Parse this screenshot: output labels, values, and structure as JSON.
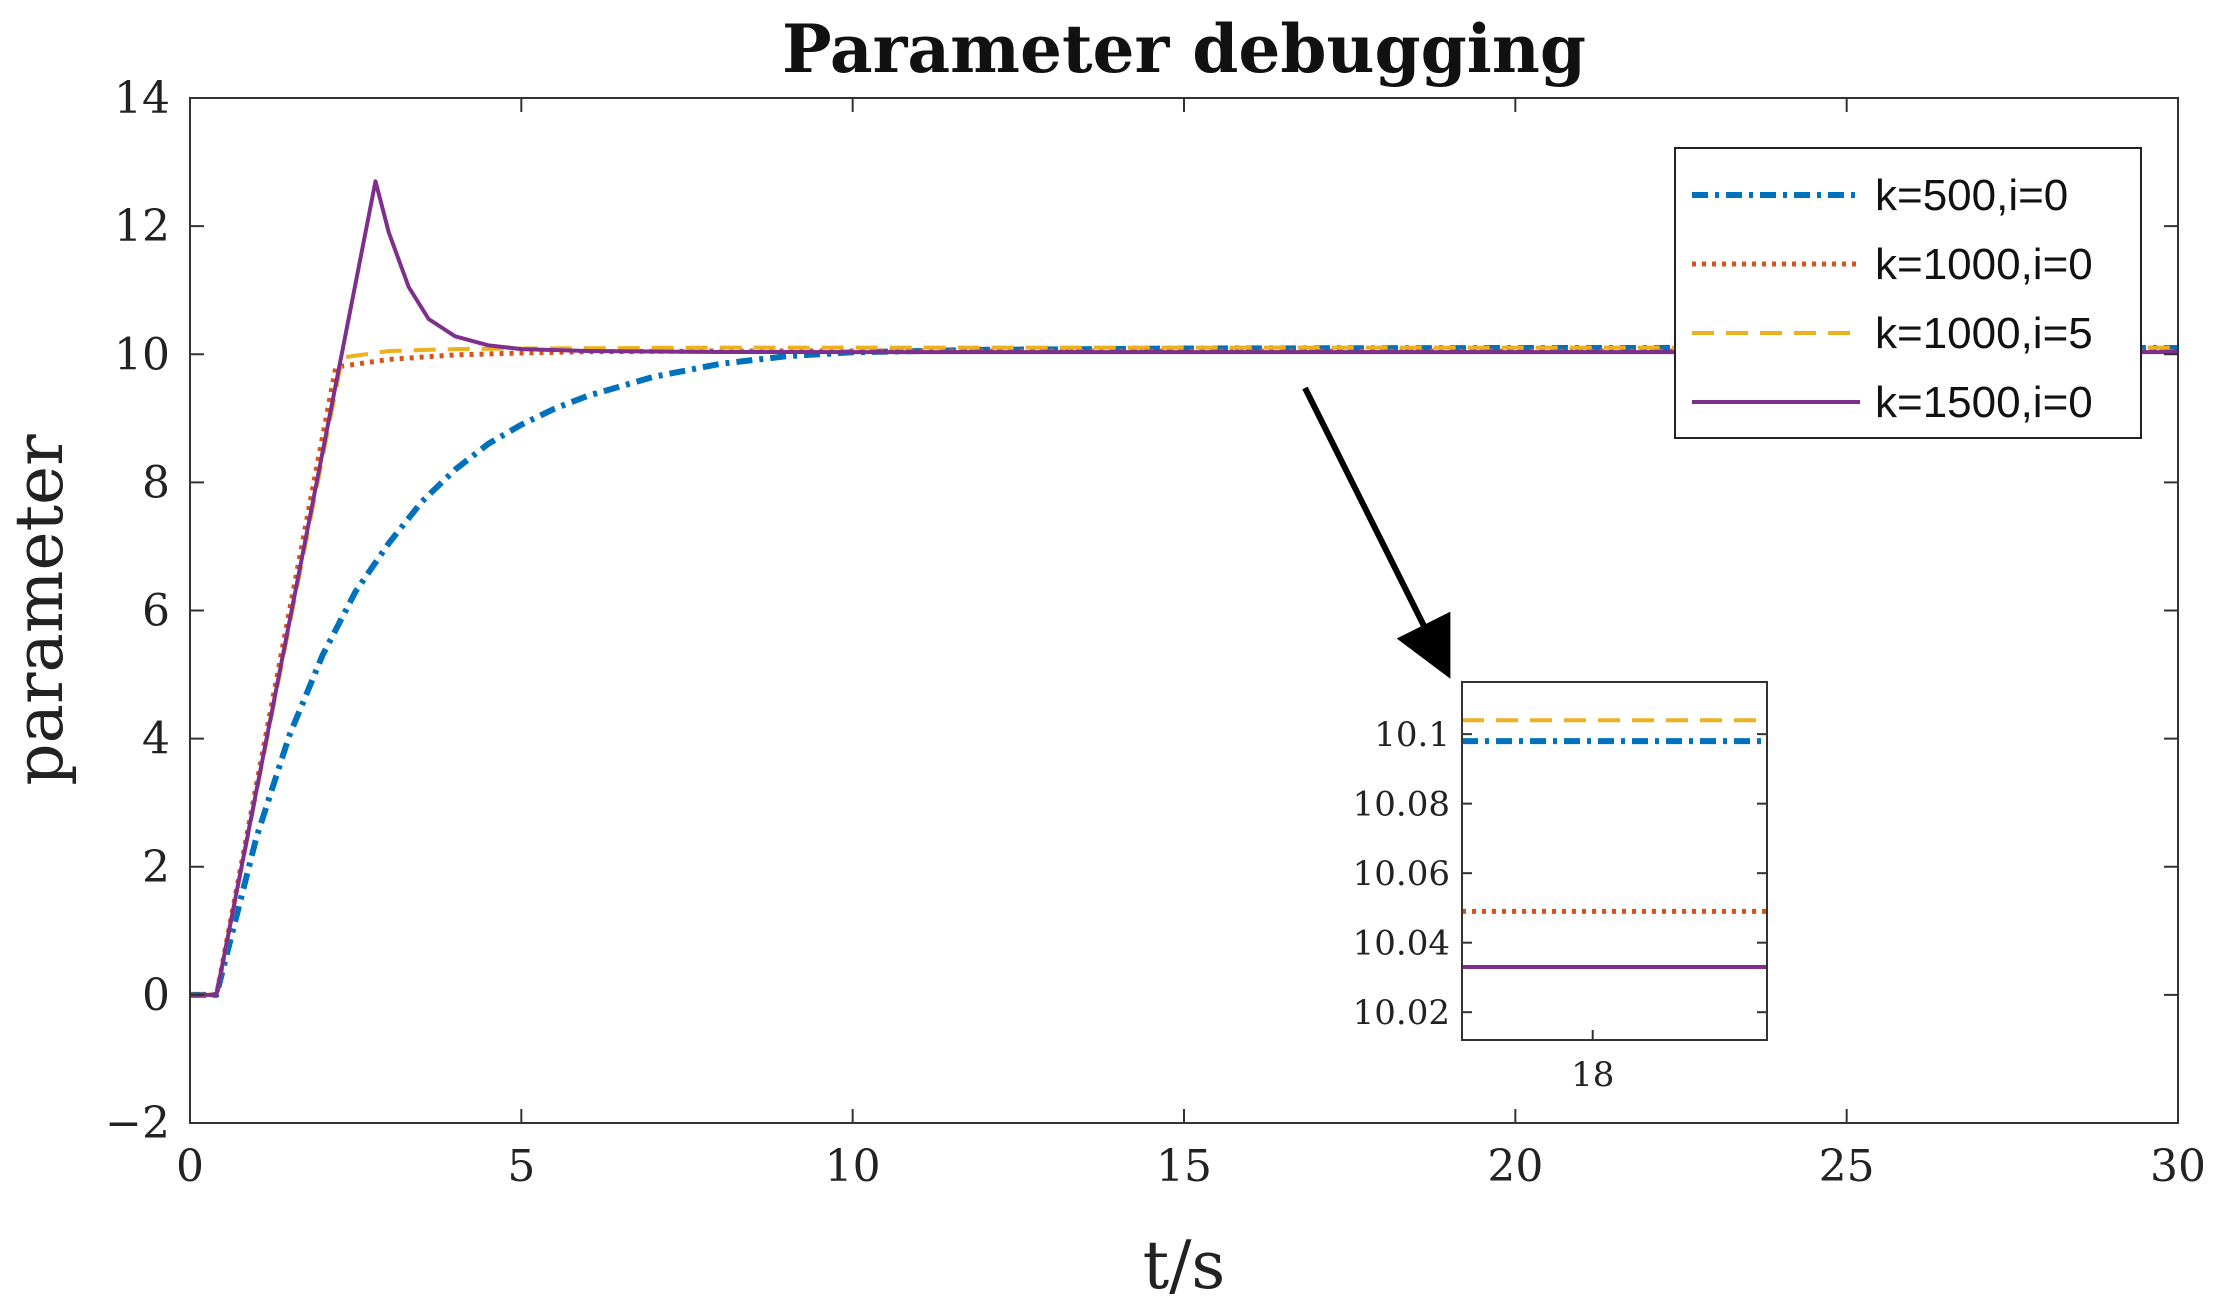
{
  "chart_data": [
    {
      "type": "line",
      "title": "Parameter debugging",
      "xlabel": "t/s",
      "ylabel": "parameter",
      "xlim": [
        0,
        30
      ],
      "ylim": [
        -2,
        14
      ],
      "xticks": [
        "0",
        "5",
        "10",
        "15",
        "20",
        "25",
        "30"
      ],
      "yticks": [
        "−2",
        "0",
        "2",
        "4",
        "6",
        "8",
        "10",
        "12",
        "14"
      ],
      "grid": false,
      "legend_position": "top-right",
      "series": [
        {
          "name": "k=500,i=0",
          "color": "#0072BD",
          "style": "dash-dot",
          "points": [
            [
              0,
              0
            ],
            [
              0.4,
              0
            ],
            [
              1,
              2.45
            ],
            [
              1.5,
              4.05
            ],
            [
              2,
              5.3
            ],
            [
              2.5,
              6.3
            ],
            [
              3,
              7.05
            ],
            [
              3.5,
              7.7
            ],
            [
              4,
              8.2
            ],
            [
              4.5,
              8.6
            ],
            [
              5,
              8.9
            ],
            [
              5.5,
              9.15
            ],
            [
              6,
              9.35
            ],
            [
              7,
              9.65
            ],
            [
              8,
              9.85
            ],
            [
              9,
              9.97
            ],
            [
              10,
              10.03
            ],
            [
              12,
              10.07
            ],
            [
              15,
              10.09
            ],
            [
              20,
              10.098
            ],
            [
              30,
              10.098
            ]
          ]
        },
        {
          "name": "k=1000,i=0",
          "color": "#D95319",
          "style": "dotted",
          "points": [
            [
              0,
              0
            ],
            [
              0.4,
              0
            ],
            [
              2.2,
              9.8
            ],
            [
              3,
              9.92
            ],
            [
              4,
              9.99
            ],
            [
              5,
              10.02
            ],
            [
              6,
              10.04
            ],
            [
              8,
              10.05
            ],
            [
              10,
              10.05
            ],
            [
              30,
              10.049
            ]
          ]
        },
        {
          "name": "k=1000,i=5",
          "color": "#EDB120",
          "style": "dashed",
          "points": [
            [
              0,
              0
            ],
            [
              0.4,
              0
            ],
            [
              2.3,
              9.95
            ],
            [
              3,
              10.05
            ],
            [
              4,
              10.08
            ],
            [
              5,
              10.09
            ],
            [
              8,
              10.104
            ],
            [
              30,
              10.104
            ]
          ]
        },
        {
          "name": "k=1500,i=0",
          "color": "#7E2F8E",
          "style": "solid",
          "points": [
            [
              0,
              0
            ],
            [
              0.4,
              0
            ],
            [
              2.8,
              12.7
            ],
            [
              3,
              11.9
            ],
            [
              3.3,
              11.05
            ],
            [
              3.6,
              10.55
            ],
            [
              4,
              10.28
            ],
            [
              4.5,
              10.14
            ],
            [
              5,
              10.08
            ],
            [
              6,
              10.05
            ],
            [
              8,
              10.035
            ],
            [
              10,
              10.033
            ],
            [
              30,
              10.033
            ]
          ]
        }
      ]
    },
    {
      "type": "line",
      "title": "",
      "xlabel": "",
      "ylabel": "",
      "xlim": [
        17.4,
        18.8
      ],
      "ylim": [
        10.012,
        10.115
      ],
      "xticks": [
        "18"
      ],
      "yticks": [
        "10.02",
        "10.04",
        "10.06",
        "10.08",
        "10.1"
      ],
      "series": [
        {
          "name": "k=500,i=0",
          "color": "#0072BD",
          "style": "dash-dot",
          "value": 10.098
        },
        {
          "name": "k=1000,i=0",
          "color": "#D95319",
          "style": "dotted",
          "value": 10.049
        },
        {
          "name": "k=1000,i=5",
          "color": "#EDB120",
          "style": "dashed",
          "value": 10.104
        },
        {
          "name": "k=1500,i=0",
          "color": "#7E2F8E",
          "style": "solid",
          "value": 10.033
        }
      ]
    }
  ]
}
